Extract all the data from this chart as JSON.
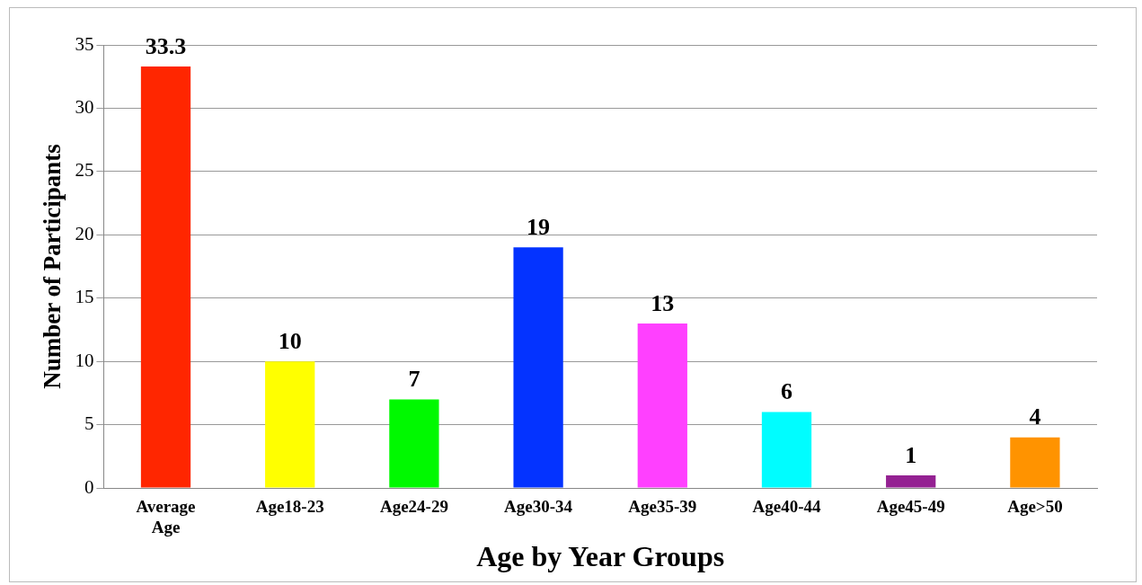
{
  "chart_data": {
    "type": "bar",
    "xlabel": "Age by Year Groups",
    "ylabel": "Number of Participants",
    "categories": [
      "Average Age",
      "Age18-23",
      "Age24-29",
      "Age30-34",
      "Age35-39",
      "Age40-44",
      "Age45-49",
      "Age>50"
    ],
    "values": [
      33.3,
      10,
      7,
      19,
      13,
      6,
      1,
      4
    ],
    "colors": [
      "#ff2600",
      "#ffff00",
      "#00f900",
      "#0433ff",
      "#ff40ff",
      "#00fdff",
      "#942192",
      "#ff9300"
    ],
    "ylim": [
      0,
      35
    ],
    "yticks": [
      0,
      5,
      10,
      15,
      20,
      25,
      30,
      35
    ],
    "grid": "y",
    "legend": false,
    "data_labels": true
  }
}
